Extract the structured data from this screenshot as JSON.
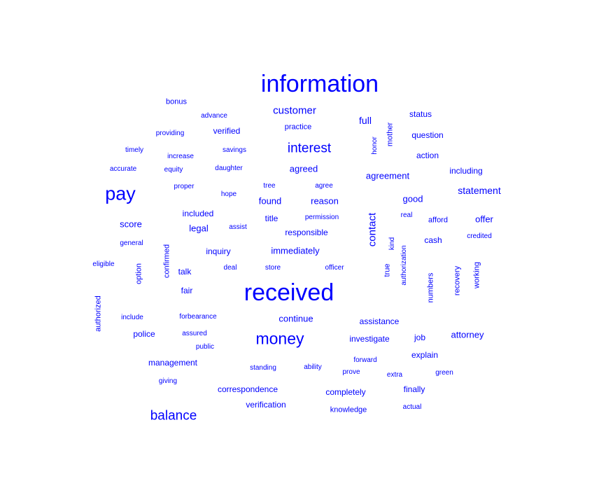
{
  "chart_data": {
    "type": "wordcloud",
    "color": "#0000ff",
    "words": [
      {
        "text": "information",
        "weight": 34
      },
      {
        "text": "received",
        "weight": 34
      },
      {
        "text": "pay",
        "weight": 27
      },
      {
        "text": "money",
        "weight": 23
      },
      {
        "text": "interest",
        "weight": 19
      },
      {
        "text": "balance",
        "weight": 19
      },
      {
        "text": "customer",
        "weight": 15
      },
      {
        "text": "contact",
        "weight": 15,
        "rotated": true
      },
      {
        "text": "statement",
        "weight": 14
      },
      {
        "text": "full",
        "weight": 14
      },
      {
        "text": "immediately",
        "weight": 13
      },
      {
        "text": "agreed",
        "weight": 13
      },
      {
        "text": "agreement",
        "weight": 13
      },
      {
        "text": "good",
        "weight": 13
      },
      {
        "text": "attorney",
        "weight": 13
      },
      {
        "text": "score",
        "weight": 13
      },
      {
        "text": "found",
        "weight": 13
      },
      {
        "text": "reason",
        "weight": 13
      },
      {
        "text": "legal",
        "weight": 13
      },
      {
        "text": "continue",
        "weight": 13
      },
      {
        "text": "offer",
        "weight": 13
      },
      {
        "text": "assistance",
        "weight": 12
      },
      {
        "text": "finally",
        "weight": 12
      },
      {
        "text": "inquiry",
        "weight": 12
      },
      {
        "text": "investigate",
        "weight": 12
      },
      {
        "text": "correspondence",
        "weight": 12
      },
      {
        "text": "management",
        "weight": 12
      },
      {
        "text": "status",
        "weight": 12
      },
      {
        "text": "cash",
        "weight": 12
      },
      {
        "text": "job",
        "weight": 12
      },
      {
        "text": "question",
        "weight": 12
      },
      {
        "text": "action",
        "weight": 12
      },
      {
        "text": "including",
        "weight": 12
      },
      {
        "text": "completely",
        "weight": 12
      },
      {
        "text": "police",
        "weight": 12
      },
      {
        "text": "talk",
        "weight": 12
      },
      {
        "text": "fair",
        "weight": 12
      },
      {
        "text": "verification",
        "weight": 12
      },
      {
        "text": "verified",
        "weight": 12
      },
      {
        "text": "responsible",
        "weight": 12
      },
      {
        "text": "title",
        "weight": 12
      },
      {
        "text": "included",
        "weight": 12
      },
      {
        "text": "explain",
        "weight": 12
      },
      {
        "text": "bonus",
        "weight": 11
      },
      {
        "text": "practice",
        "weight": 11
      },
      {
        "text": "authorized",
        "weight": 11,
        "rotated": true
      },
      {
        "text": "mother",
        "weight": 11,
        "rotated": true
      },
      {
        "text": "numbers",
        "weight": 11,
        "rotated": true
      },
      {
        "text": "working",
        "weight": 11,
        "rotated": true
      },
      {
        "text": "option",
        "weight": 11,
        "rotated": true
      },
      {
        "text": "confirmed",
        "weight": 11,
        "rotated": true
      },
      {
        "text": "recovery",
        "weight": 11,
        "rotated": true
      },
      {
        "text": "true",
        "weight": 11,
        "rotated": true
      },
      {
        "text": "afford",
        "weight": 11
      },
      {
        "text": "knowledge",
        "weight": 11
      },
      {
        "text": "advance",
        "weight": 10
      },
      {
        "text": "providing",
        "weight": 10
      },
      {
        "text": "timely",
        "weight": 10
      },
      {
        "text": "increase",
        "weight": 10
      },
      {
        "text": "savings",
        "weight": 10
      },
      {
        "text": "accurate",
        "weight": 10
      },
      {
        "text": "equity",
        "weight": 10
      },
      {
        "text": "daughter",
        "weight": 10
      },
      {
        "text": "honor",
        "weight": 10,
        "rotated": true
      },
      {
        "text": "proper",
        "weight": 10
      },
      {
        "text": "hope",
        "weight": 10
      },
      {
        "text": "tree",
        "weight": 10
      },
      {
        "text": "agree",
        "weight": 10
      },
      {
        "text": "permission",
        "weight": 10
      },
      {
        "text": "assist",
        "weight": 10
      },
      {
        "text": "real",
        "weight": 10
      },
      {
        "text": "credited",
        "weight": 10
      },
      {
        "text": "general",
        "weight": 10
      },
      {
        "text": "kind",
        "weight": 10,
        "rotated": true
      },
      {
        "text": "authorization",
        "weight": 10,
        "rotated": true
      },
      {
        "text": "eligible",
        "weight": 10
      },
      {
        "text": "deal",
        "weight": 10
      },
      {
        "text": "store",
        "weight": 10
      },
      {
        "text": "officer",
        "weight": 10
      },
      {
        "text": "forbearance",
        "weight": 10
      },
      {
        "text": "include",
        "weight": 10
      },
      {
        "text": "assured",
        "weight": 10
      },
      {
        "text": "public",
        "weight": 10
      },
      {
        "text": "forward",
        "weight": 10
      },
      {
        "text": "standing",
        "weight": 10
      },
      {
        "text": "ability",
        "weight": 10
      },
      {
        "text": "prove",
        "weight": 10
      },
      {
        "text": "extra",
        "weight": 10
      },
      {
        "text": "green",
        "weight": 10
      },
      {
        "text": "giving",
        "weight": 10
      },
      {
        "text": "actual",
        "weight": 10
      }
    ]
  }
}
